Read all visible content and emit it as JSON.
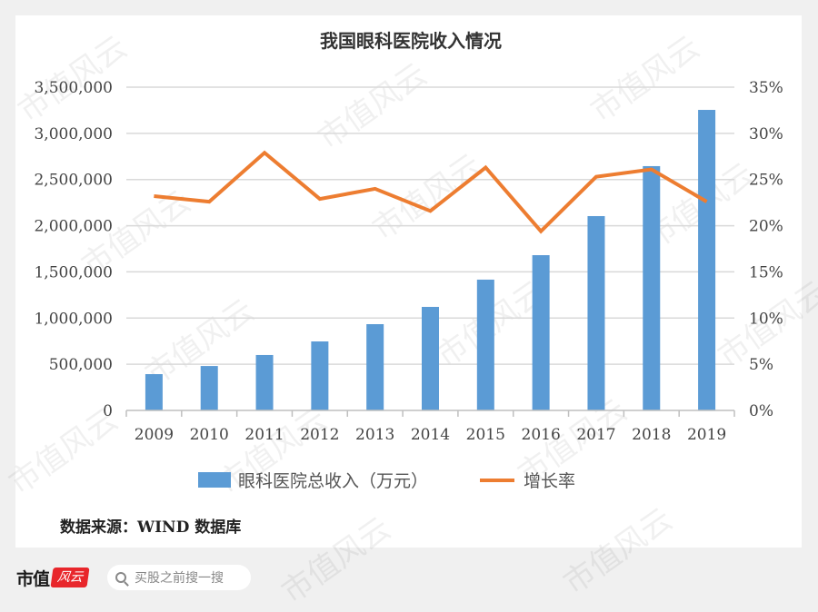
{
  "chart_data": {
    "type": "bar",
    "title": "我国眼科医院收入情况",
    "categories": [
      "2009",
      "2010",
      "2011",
      "2012",
      "2013",
      "2014",
      "2015",
      "2016",
      "2017",
      "2018",
      "2019"
    ],
    "series": [
      {
        "name": "眼科医院总收入（万元）",
        "type": "bar",
        "axis": "left",
        "color": "#5b9bd5",
        "values": [
          393000,
          481000,
          600000,
          747000,
          934000,
          1121000,
          1416000,
          1681000,
          2104000,
          2645000,
          3254000
        ]
      },
      {
        "name": "增长率",
        "type": "line",
        "axis": "right",
        "color": "#ed7d31",
        "values": [
          23.2,
          22.6,
          27.9,
          22.9,
          24.0,
          21.6,
          26.3,
          19.4,
          25.3,
          26.1,
          22.6
        ]
      }
    ],
    "y_left": {
      "min": 0,
      "max": 3500000,
      "ticks": [
        "0",
        "500,000",
        "1,000,000",
        "1,500,000",
        "2,000,000",
        "2,500,000",
        "3,000,000",
        "3,500,000"
      ]
    },
    "y_right": {
      "min": 0,
      "max": 35,
      "ticks": [
        "0%",
        "5%",
        "10%",
        "15%",
        "20%",
        "25%",
        "30%",
        "35%"
      ]
    },
    "xlabel": "",
    "ylabel": "",
    "grid": true,
    "legend_position": "bottom"
  },
  "source_note": "数据来源：WIND 数据库",
  "footer": {
    "logo_text": "市值",
    "logo_badge": "风云",
    "search_placeholder": "买股之前搜一搜"
  },
  "watermark": "市值风云"
}
